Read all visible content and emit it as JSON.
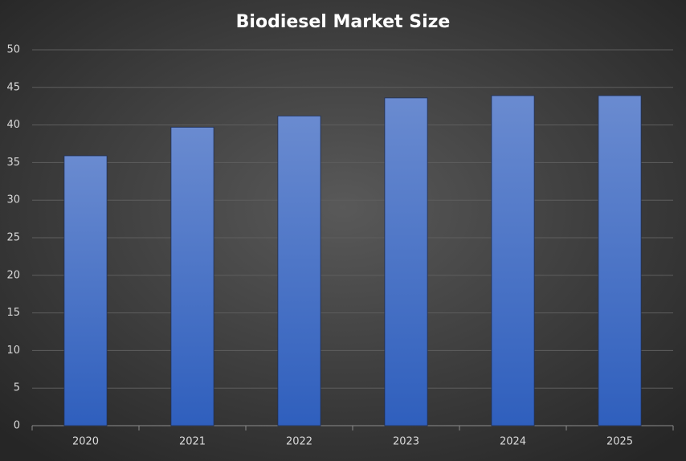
{
  "chart_data": {
    "type": "bar",
    "title": "Biodiesel Market Size",
    "categories": [
      "2020",
      "2021",
      "2022",
      "2023",
      "2024",
      "2025"
    ],
    "values": [
      35.9,
      39.7,
      41.2,
      43.6,
      43.9,
      43.9
    ],
    "ylim": [
      0,
      50
    ],
    "yticks": [
      0,
      5,
      10,
      15,
      20,
      25,
      30,
      35,
      40,
      45,
      50
    ],
    "grid": true
  }
}
